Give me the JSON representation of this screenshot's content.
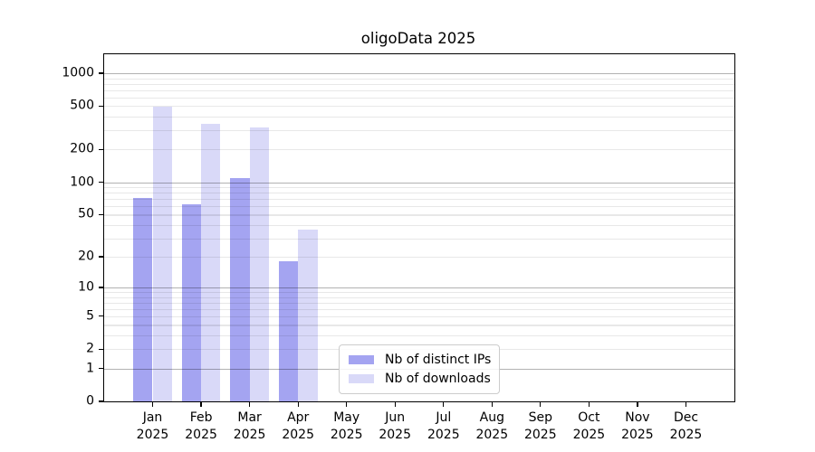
{
  "figure": {
    "background": "#ffffff"
  },
  "chart_data": {
    "type": "bar",
    "title": "oligoData 2025",
    "categories": [
      "Jan",
      "Feb",
      "Mar",
      "Apr",
      "May",
      "Jun",
      "Jul",
      "Aug",
      "Sep",
      "Oct",
      "Nov",
      "Dec"
    ],
    "x_year_label": "2025",
    "series": [
      {
        "name": "Nb of distinct IPs",
        "color": "#a4a4f1",
        "values": [
          72,
          62,
          109,
          18,
          0,
          0,
          0,
          0,
          0,
          0,
          0,
          0
        ]
      },
      {
        "name": "Nb of downloads",
        "color": "#d9d9f8",
        "values": [
          490,
          346,
          320,
          36,
          0,
          0,
          0,
          0,
          0,
          0,
          0,
          0
        ]
      }
    ],
    "y_scale": "log1p",
    "ylim": [
      0,
      1490
    ],
    "y_ticks": [
      0,
      1,
      2,
      5,
      10,
      20,
      50,
      100,
      200,
      500,
      1000
    ],
    "y_major_gridlines": [
      1,
      10,
      100,
      1000
    ],
    "y_minor_gridlines": [
      2,
      3,
      4,
      5,
      6,
      7,
      8,
      9,
      20,
      30,
      40,
      50,
      60,
      70,
      80,
      90,
      200,
      300,
      400,
      500,
      600,
      700,
      800,
      900
    ],
    "grid_color_major": "#b0b0b0",
    "grid_color_minor": "#e8e8e8",
    "legend_position": "lower center"
  }
}
